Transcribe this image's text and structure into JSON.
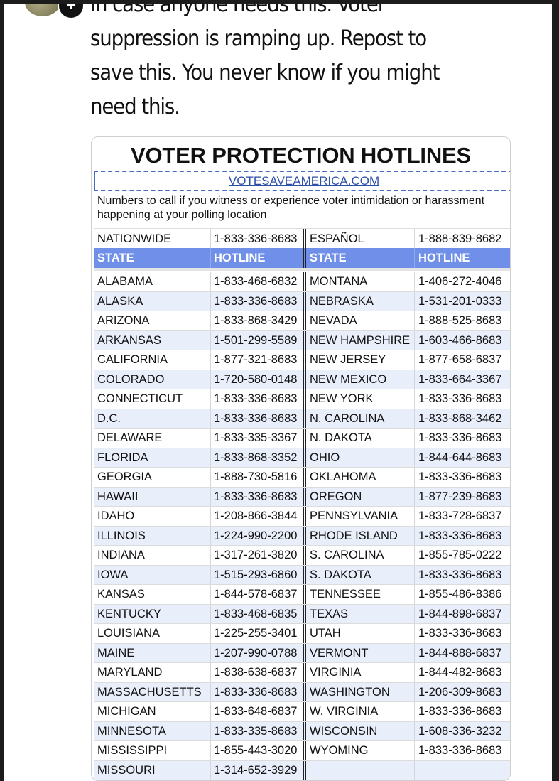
{
  "post": {
    "text_lines": [
      "In case anyone needs this. Voter",
      "suppression is ramping up.  Repost to",
      "save this. You never know if you might",
      "need this."
    ]
  },
  "image": {
    "title": "VOTER PROTECTION HOTLINES",
    "url": "VOTESAVEAMERICA.COM",
    "description": "Numbers to call if you witness or experience voter intimidation or harassment happening at your polling location",
    "nationwide": {
      "label": "NATIONWIDE",
      "number": "1-833-336-8683"
    },
    "espanol": {
      "label": "ESPAÑOL",
      "number": "1-888-839-8682"
    },
    "headers": {
      "state": "STATE",
      "hotline": "HOTLINE"
    },
    "header_color": "#6f8fe8",
    "left": [
      [
        "ALABAMA",
        "1-833-468-6832"
      ],
      [
        "ALASKA",
        "1-833-336-8683"
      ],
      [
        "ARIZONA",
        "1-833-868-3429"
      ],
      [
        "ARKANSAS",
        "1-501-299-5589"
      ],
      [
        "CALIFORNIA",
        "1-877-321-8683"
      ],
      [
        "COLORADO",
        "1-720-580-0148"
      ],
      [
        "CONNECTICUT",
        "1-833-336-8683"
      ],
      [
        "D.C.",
        "1-833-336-8683"
      ],
      [
        "DELAWARE",
        "1-833-335-3367"
      ],
      [
        "FLORIDA",
        "1-833-868-3352"
      ],
      [
        "GEORGIA",
        "1-888-730-5816"
      ],
      [
        "HAWAII",
        "1-833-336-8683"
      ],
      [
        "IDAHO",
        "1-208-866-3844"
      ],
      [
        "ILLINOIS",
        "1-224-990-2200"
      ],
      [
        "INDIANA",
        "1-317-261-3820"
      ],
      [
        "IOWA",
        "1-515-293-6860"
      ],
      [
        "KANSAS",
        "1-844-578-6837"
      ],
      [
        "KENTUCKY",
        "1-833-468-6835"
      ],
      [
        "LOUISIANA",
        "1-225-255-3401"
      ],
      [
        "MAINE",
        "1-207-990-0788"
      ],
      [
        "MARYLAND",
        "1-838-638-6837"
      ],
      [
        "MASSACHUSETTS",
        "1-833-336-8683"
      ],
      [
        "MICHIGAN",
        "1-833-648-6837"
      ],
      [
        "MINNESOTA",
        "1-833-335-8683"
      ],
      [
        "MISSISSIPPI",
        "1-855-443-3020"
      ],
      [
        "MISSOURI",
        "1-314-652-3929"
      ]
    ],
    "right": [
      [
        "MONTANA",
        "1-406-272-4046"
      ],
      [
        "NEBRASKA",
        "1-531-201-0333"
      ],
      [
        "NEVADA",
        "1-888-525-8683"
      ],
      [
        "NEW HAMPSHIRE",
        "1-603-466-8683"
      ],
      [
        "NEW JERSEY",
        "1-877-658-6837"
      ],
      [
        "NEW MEXICO",
        "1-833-664-3367"
      ],
      [
        "NEW YORK",
        "1-833-336-8683"
      ],
      [
        "N. CAROLINA",
        "1-833-868-3462"
      ],
      [
        "N. DAKOTA",
        "1-833-336-8683"
      ],
      [
        "OHIO",
        "1-844-644-8683"
      ],
      [
        "OKLAHOMA",
        "1-833-336-8683"
      ],
      [
        "OREGON",
        "1-877-239-8683"
      ],
      [
        "PENNSYLVANIA",
        "1-833-728-6837"
      ],
      [
        "RHODE ISLAND",
        "1-833-336-8683"
      ],
      [
        "S. CAROLINA",
        "1-855-785-0222"
      ],
      [
        "S. DAKOTA",
        "1-833-336-8683"
      ],
      [
        "TENNESSEE",
        "1-855-486-8386"
      ],
      [
        "TEXAS",
        "1-844-898-6837"
      ],
      [
        "UTAH",
        "1-833-336-8683"
      ],
      [
        "VERMONT",
        "1-844-888-6837"
      ],
      [
        "VIRGINIA",
        "1-844-482-8683"
      ],
      [
        "WASHINGTON",
        "1-206-309-8683"
      ],
      [
        "W. VIRGINIA",
        "1-833-336-8683"
      ],
      [
        "WISCONSIN",
        "1-608-336-3232"
      ],
      [
        "WYOMING",
        "1-833-336-8683"
      ]
    ]
  }
}
